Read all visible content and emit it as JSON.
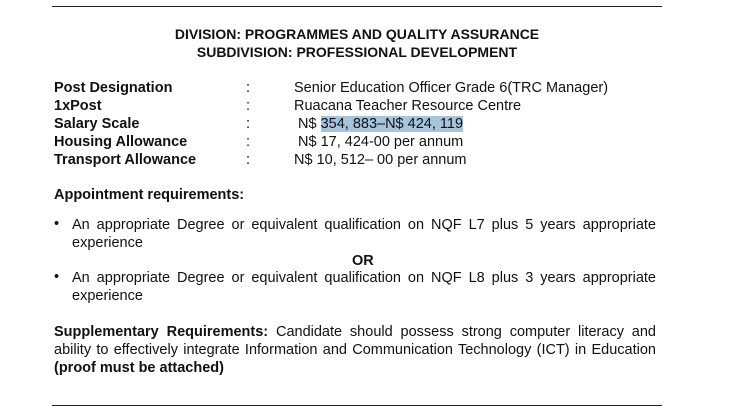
{
  "header": {
    "division": "DIVISION: PROGRAMMES AND QUALITY ASSURANCE",
    "subdivision": "SUBDIVISION: PROFESSIONAL DEVELOPMENT"
  },
  "details": [
    {
      "label": "Post Designation",
      "sep": ":",
      "value": "Senior Education Officer Grade 6(TRC Manager)"
    },
    {
      "label": "1xPost",
      "sep": ":",
      "value": "Ruacana Teacher Resource Centre"
    },
    {
      "label": "Salary Scale",
      "sep": ":",
      "prefix": "N$ ",
      "value": "354, 883–N$ 424, 119"
    },
    {
      "label": "Housing Allowance",
      "sep": ":",
      "value": "N$ 17, 424-00 per annum"
    },
    {
      "label": "Transport Allowance",
      "sep": ":",
      "value": "N$ 10, 512– 00 per annum"
    }
  ],
  "appointment": {
    "heading": "Appointment requirements:",
    "bullet": "•",
    "items": [
      "An appropriate Degree or equivalent qualification on NQF L7 plus 5 years appropriate experience",
      "An appropriate Degree or equivalent qualification on NQF L8 plus 3 years appropriate experience"
    ],
    "or": "OR"
  },
  "supplementary": {
    "heading": "Supplementary Requirements:",
    "text": " Candidate should possess strong computer literacy and ability to effectively integrate Information and Communication Technology (ICT) in Education ",
    "bold_tail": "(proof must be attached)"
  },
  "colors": {
    "highlight": "#a7c4df"
  }
}
